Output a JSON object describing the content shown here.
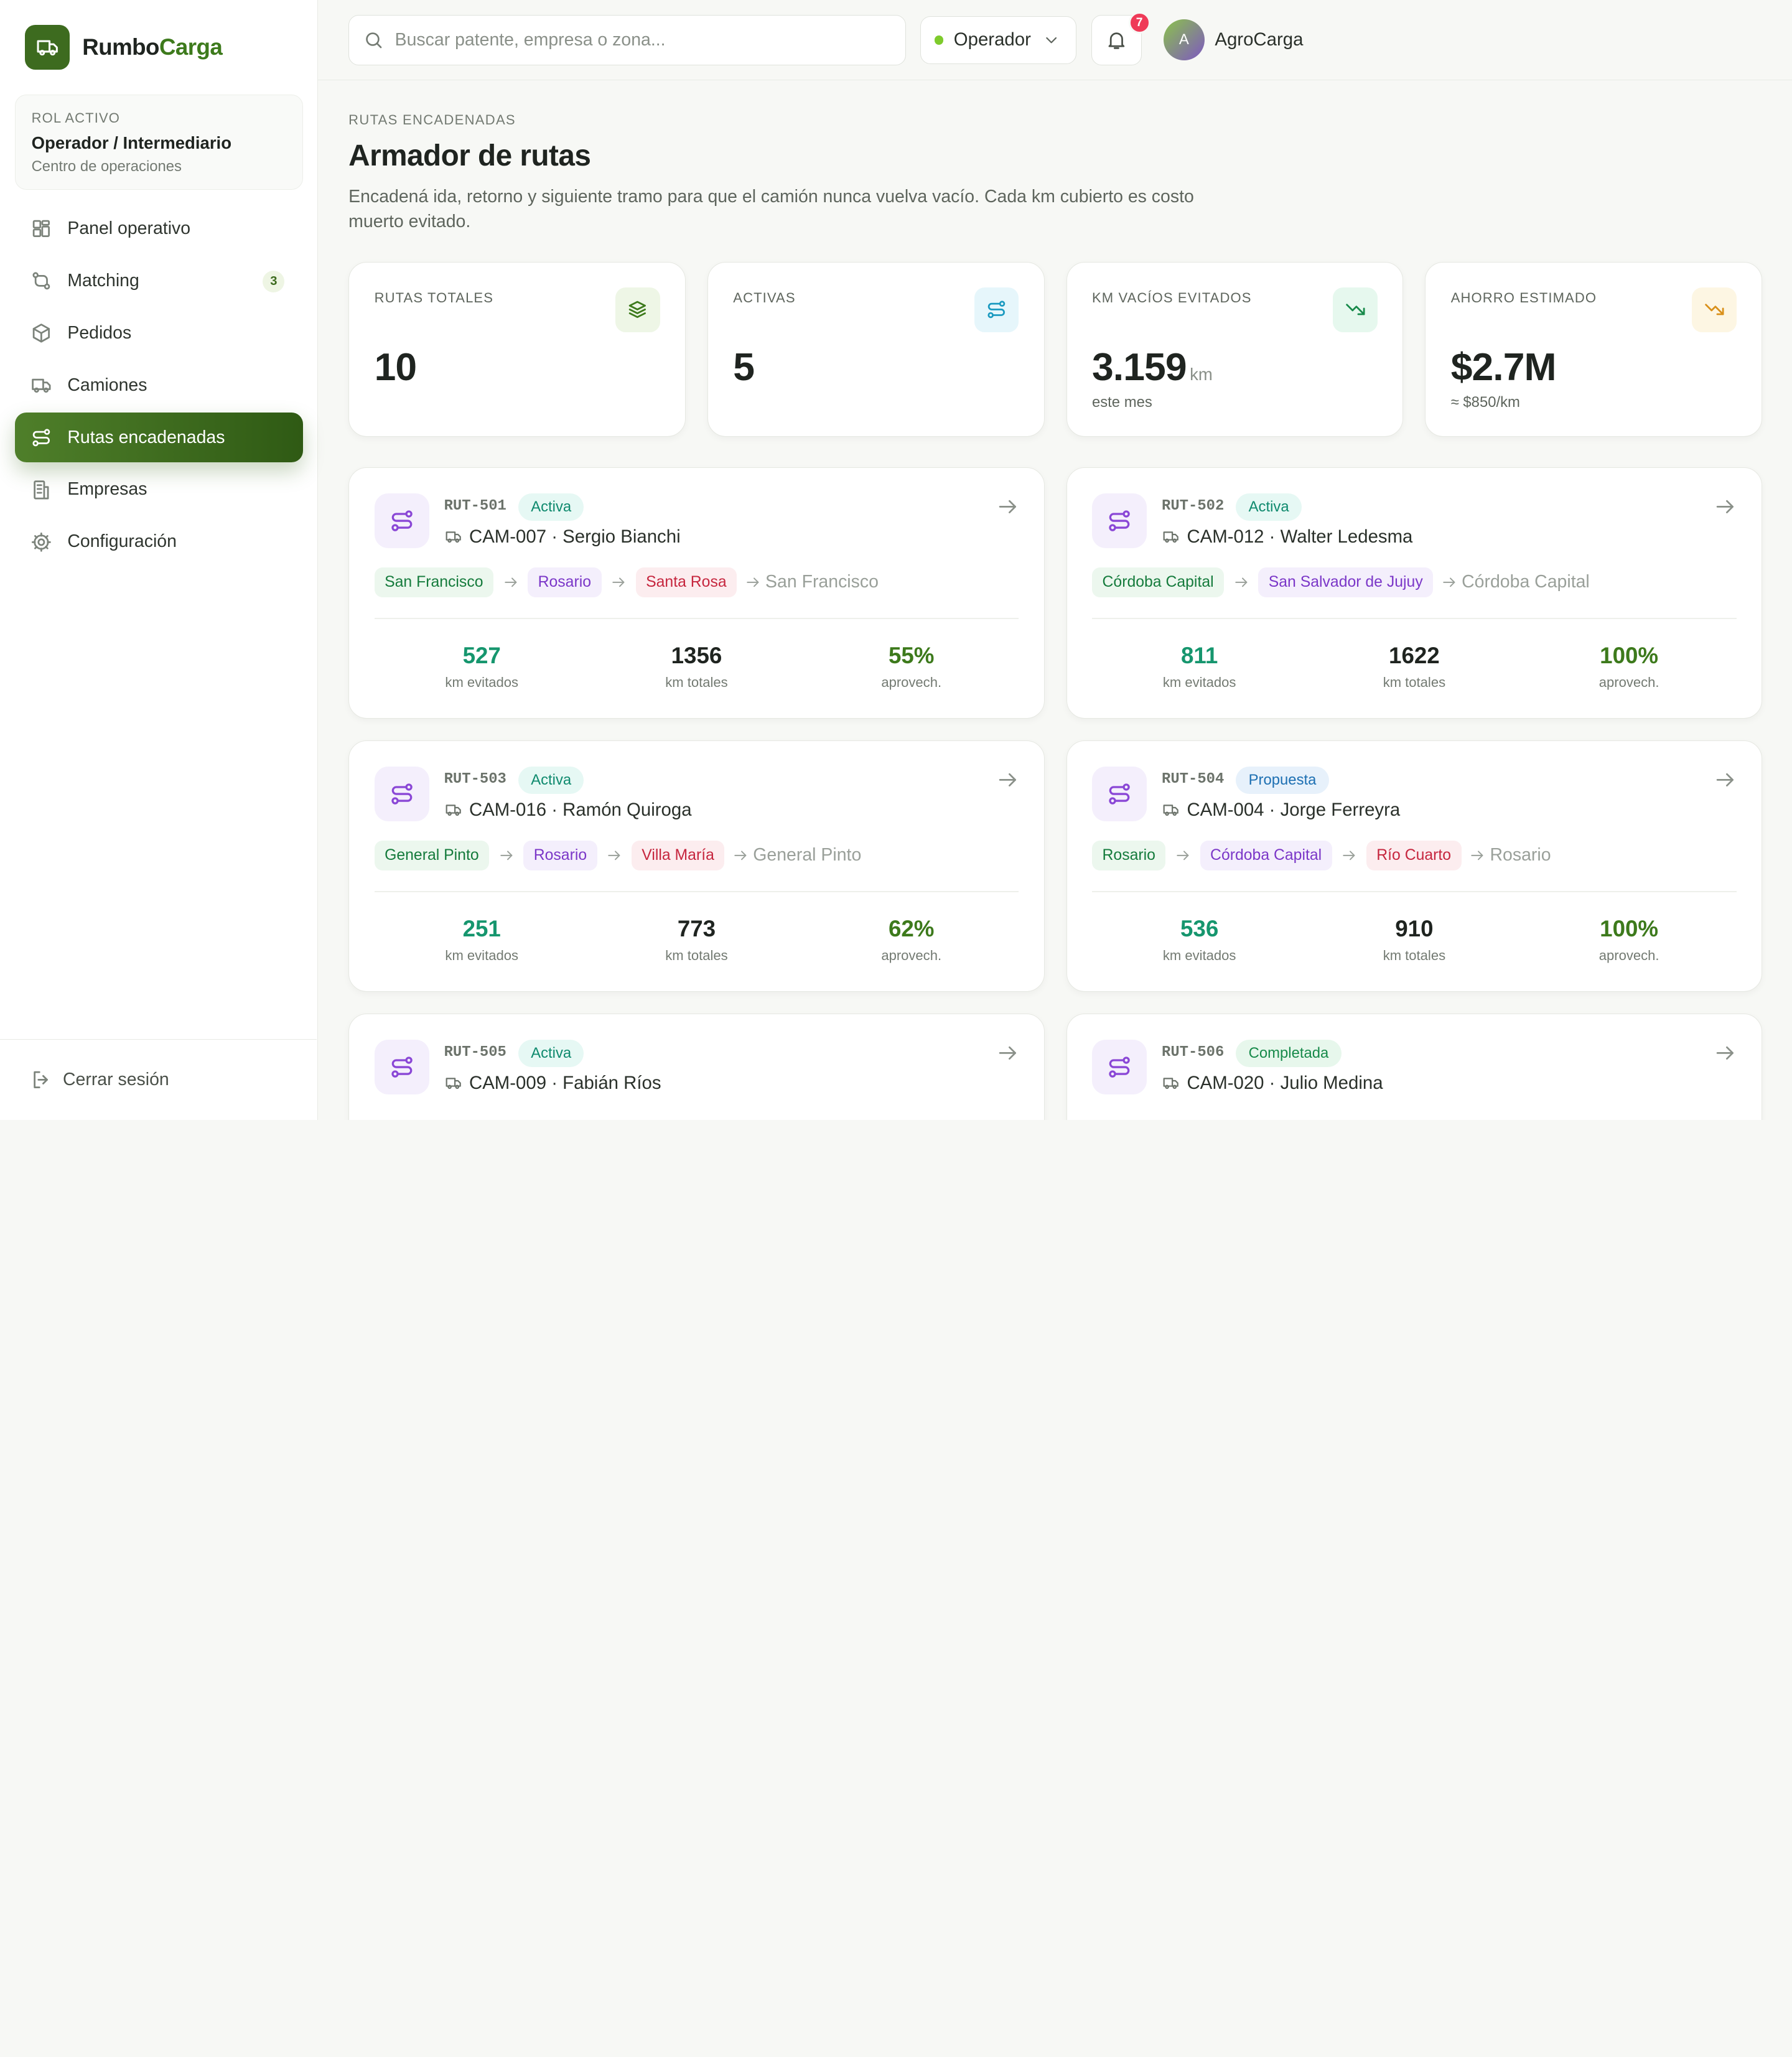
{
  "brand": {
    "name_a": "Rumbo",
    "name_b": "Carga"
  },
  "role_card": {
    "label": "ROL ACTIVO",
    "role": "Operador / Intermediario",
    "subtitle": "Centro de operaciones"
  },
  "nav": [
    {
      "label": "Panel operativo",
      "icon": "grid-icon"
    },
    {
      "label": "Matching",
      "icon": "match-icon",
      "badge": "3"
    },
    {
      "label": "Pedidos",
      "icon": "box-icon"
    },
    {
      "label": "Camiones",
      "icon": "truck-icon"
    },
    {
      "label": "Rutas encadenadas",
      "icon": "route-icon",
      "active": true
    },
    {
      "label": "Empresas",
      "icon": "building-icon"
    },
    {
      "label": "Configuración",
      "icon": "gear-icon"
    }
  ],
  "logout": {
    "label": "Cerrar sesión"
  },
  "topbar": {
    "search_placeholder": "Buscar patente, empresa o zona...",
    "role_select": "Operador",
    "notifications": "7",
    "avatar_letter": "A",
    "user_name": "AgroCarga"
  },
  "page": {
    "eyebrow": "RUTAS ENCADENADAS",
    "title": "Armador de rutas",
    "description": "Encadená ida, retorno y siguiente tramo para que el camión nunca vuelva vacío. Cada km cubierto es costo muerto evitado."
  },
  "stats": [
    {
      "label": "RUTAS TOTALES",
      "value": "10",
      "unit": "",
      "sub": "",
      "icon": "layers-icon",
      "icon_bg": "#eef6e6",
      "icon_color": "#3d7a1c"
    },
    {
      "label": "ACTIVAS",
      "value": "5",
      "unit": "",
      "sub": "",
      "icon": "route-icon",
      "icon_bg": "#e6f6fb",
      "icon_color": "#1b9ac0"
    },
    {
      "label": "KM VACÍOS EVITADOS",
      "value": "3.159",
      "unit": "km",
      "sub": "este mes",
      "icon": "trending-down-icon",
      "icon_bg": "#e6f8ee",
      "icon_color": "#178a4a"
    },
    {
      "label": "AHORRO ESTIMADO",
      "value": "$2.7M",
      "unit": "",
      "sub": "≈ $850/km",
      "icon": "trending-down-icon",
      "icon_bg": "#fdf6e3",
      "icon_color": "#d9901a"
    }
  ],
  "routes": [
    {
      "code": "RUT-501",
      "status": "Activa",
      "truck": "CAM-007 · Sergio Bianchi",
      "stops": [
        "San Francisco",
        "Rosario",
        "Santa Rosa"
      ],
      "end": "San Francisco",
      "km_avoided": "527",
      "km_total": "1356",
      "usage": "55%"
    },
    {
      "code": "RUT-502",
      "status": "Activa",
      "truck": "CAM-012 · Walter Ledesma",
      "stops": [
        "Córdoba Capital",
        "San Salvador de Jujuy"
      ],
      "end": "Córdoba Capital",
      "km_avoided": "811",
      "km_total": "1622",
      "usage": "100%"
    },
    {
      "code": "RUT-503",
      "status": "Activa",
      "truck": "CAM-016 · Ramón Quiroga",
      "stops": [
        "General Pinto",
        "Rosario",
        "Villa María"
      ],
      "end": "General Pinto",
      "km_avoided": "251",
      "km_total": "773",
      "usage": "62%"
    },
    {
      "code": "RUT-504",
      "status": "Propuesta",
      "truck": "CAM-004 · Jorge Ferreyra",
      "stops": [
        "Rosario",
        "Córdoba Capital",
        "Río Cuarto"
      ],
      "end": "Rosario",
      "km_avoided": "536",
      "km_total": "910",
      "usage": "100%"
    },
    {
      "code": "RUT-505",
      "status": "Activa",
      "truck": "CAM-009 · Fabián Ríos",
      "stops": [],
      "end": "",
      "km_avoided": "",
      "km_total": "",
      "usage": ""
    },
    {
      "code": "RUT-506",
      "status": "Completada",
      "truck": "CAM-020 · Julio Medina",
      "stops": [],
      "end": "",
      "km_avoided": "",
      "km_total": "",
      "usage": ""
    }
  ],
  "metric_labels": {
    "avoided": "km evitados",
    "total": "km totales",
    "usage": "aprovech."
  }
}
